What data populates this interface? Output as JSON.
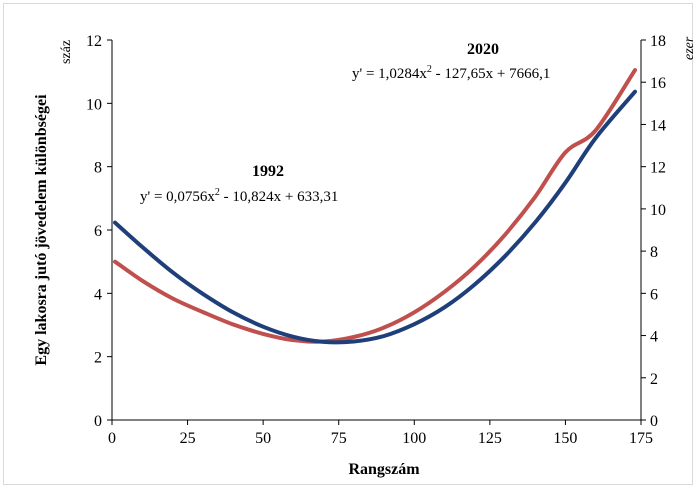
{
  "chart_data": {
    "type": "line",
    "xlabel": "Rangszám",
    "ylabel": "Egy lakosra jutó jövedelem különbségei",
    "ylabel_unit": "száz",
    "y2label_unit": "ezer",
    "xlim": [
      0,
      175
    ],
    "xticks": [
      "0",
      "25",
      "50",
      "75",
      "100",
      "125",
      "150",
      "175"
    ],
    "ylim": [
      0,
      12
    ],
    "yticks": [
      "0",
      "2",
      "4",
      "6",
      "8",
      "10",
      "12"
    ],
    "y2lim": [
      0,
      18
    ],
    "y2ticks": [
      "0",
      "2",
      "4",
      "6",
      "8",
      "10",
      "12",
      "14",
      "16",
      "18"
    ],
    "series": [
      {
        "name": "1992",
        "axis": "left",
        "color": "#c0504d",
        "x": [
          1,
          10,
          20,
          30,
          40,
          50,
          60,
          70,
          80,
          90,
          100,
          110,
          120,
          130,
          140,
          150,
          160,
          173
        ],
        "y": [
          5.0,
          4.4,
          3.84,
          3.41,
          3.02,
          2.72,
          2.52,
          2.48,
          2.62,
          2.92,
          3.4,
          4.05,
          4.85,
          5.85,
          7.05,
          8.45,
          9.15,
          11.05
        ]
      },
      {
        "name": "2020",
        "axis": "right",
        "color": "#1f3f7a",
        "x": [
          1,
          10,
          20,
          30,
          40,
          50,
          60,
          70,
          80,
          90,
          100,
          110,
          120,
          130,
          140,
          150,
          160,
          173
        ],
        "y": [
          9.35,
          8.2,
          7.0,
          5.98,
          5.1,
          4.42,
          3.94,
          3.7,
          3.72,
          3.98,
          4.54,
          5.34,
          6.42,
          7.76,
          9.36,
          11.24,
          13.36,
          15.55
        ]
      }
    ],
    "annotations": [
      {
        "label": "1992",
        "equation_prefix": "y' = 0,0756x",
        "sup": "2",
        "equation_suffix": " - 10,824x + 633,31"
      },
      {
        "label": "2020",
        "equation_prefix": "y' = 1,0284x",
        "sup": "2",
        "equation_suffix": " - 127,65x + 7666,1"
      }
    ]
  }
}
